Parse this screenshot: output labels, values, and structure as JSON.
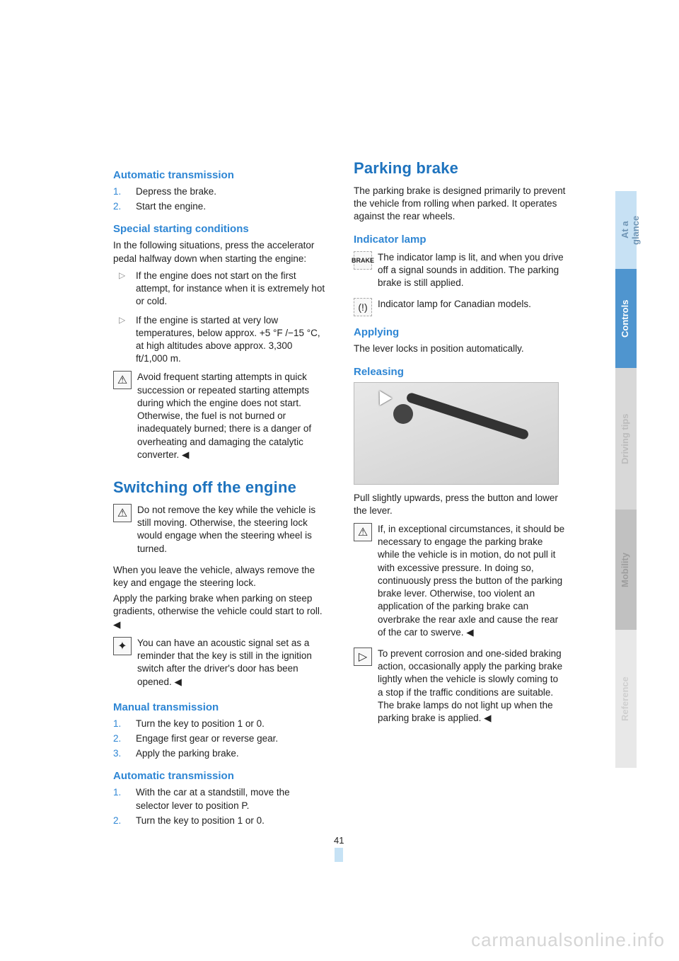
{
  "left": {
    "h_auto": "Automatic transmission",
    "auto_steps": [
      "Depress the brake.",
      "Start the engine."
    ],
    "h_special": "Special starting conditions",
    "special_intro": "In the following situations, press the accelerator pedal halfway down when starting the engine:",
    "special_b1": "If the engine does not start on the first attempt, for instance when it is extremely hot or cold.",
    "special_b2": "If the engine is started at very low temperatures, below approx. +5 °F /−15 °C, at high altitudes above approx. 3,300 ft/1,000 m.",
    "warn1": "Avoid frequent starting attempts in quick succession or repeated starting attempts during which the engine does not start. Otherwise, the fuel is not burned or inadequately burned; there is a danger of overheating and damaging the catalytic converter. ◀",
    "h1_switch": "Switching off the engine",
    "warn2": "Do not remove the key while the vehicle is still moving. Otherwise, the steering lock would engage when the steering wheel is turned.",
    "warn2b": "When you leave the vehicle, always remove the key and engage the steering lock.",
    "warn2c": "Apply the parking brake when parking on steep gradients, otherwise the vehicle could start to roll. ◀",
    "tip1": "You can have an acoustic signal set as a reminder that the key is still in the ignition switch after the driver's door has been opened. ◀",
    "h_manual": "Manual transmission",
    "manual_steps": [
      "Turn the key to position 1 or 0.",
      "Engage first gear or reverse gear.",
      "Apply the parking brake."
    ],
    "h_auto2": "Automatic transmission",
    "auto2_steps": [
      "With the car at a standstill, move the selector lever to position P.",
      "Turn the key to position 1 or 0."
    ]
  },
  "right": {
    "h1_parking": "Parking brake",
    "parking_intro": "The parking brake is designed primarily to prevent the vehicle from rolling when parked. It operates against the rear wheels.",
    "h_indicator": "Indicator lamp",
    "indicator_text": "The indicator lamp is lit, and when you drive off a signal sounds in addition. The parking brake is still applied.",
    "indicator_canada": "Indicator lamp for Canadian models.",
    "h_applying": "Applying",
    "applying_text": "The lever locks in position automatically.",
    "h_releasing": "Releasing",
    "releasing_text": "Pull slightly upwards, press the button and lower the lever.",
    "warn3": "If, in exceptional circumstances, it should be necessary to engage the parking brake while the vehicle is in motion, do not pull it with excessive pressure. In doing so, continuously press the button of the parking brake lever. Otherwise, too violent an application of the parking brake can overbrake the rear axle and cause the rear of the car to swerve. ◀",
    "tip2": "To prevent corrosion and one-sided braking action, occasionally apply the parking brake lightly when the vehicle is slowly coming to a stop if the traffic conditions are suitable. The brake lamps do not light up when the parking brake is applied. ◀"
  },
  "tabs": [
    {
      "label": "At a glance",
      "bg": "#c7e1f4",
      "color": "#6f95b5"
    },
    {
      "label": "Controls",
      "bg": "#4f95cf",
      "color": "#ffffff"
    },
    {
      "label": "Driving tips",
      "bg": "#d8d8d8",
      "color": "#bcbcbc"
    },
    {
      "label": "Mobility",
      "bg": "#c1c1c1",
      "color": "#9e9e9e"
    },
    {
      "label": "Reference",
      "bg": "#e8e8e8",
      "color": "#cfcfcf"
    }
  ],
  "tab_heights": [
    110,
    140,
    200,
    170,
    195
  ],
  "brake_label": "BRAKE",
  "page_number": "41",
  "watermark": "carmanualsonline.info",
  "colors": {
    "h1": "#1e73be",
    "h2": "#2e86d4",
    "list_num": "#2e86d4"
  }
}
